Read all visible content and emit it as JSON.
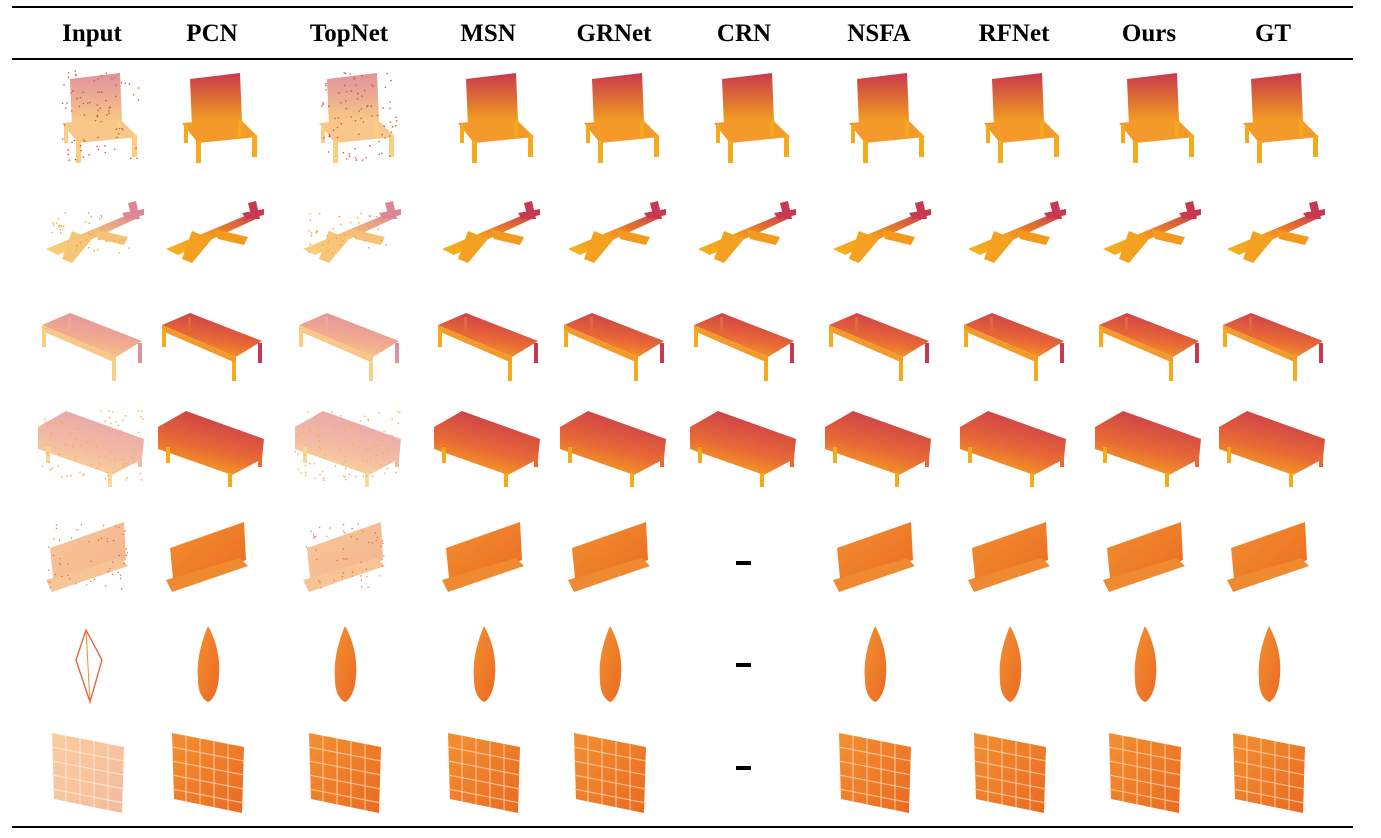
{
  "columns": [
    "Input",
    "PCN",
    "TopNet",
    "MSN",
    "GRNet",
    "CRN",
    "NSFA",
    "RFNet",
    "Ours",
    "GT"
  ],
  "rows": [
    {
      "object": "chair",
      "cells": [
        "point-cloud",
        "point-cloud",
        "point-cloud",
        "point-cloud",
        "point-cloud",
        "point-cloud",
        "point-cloud",
        "point-cloud",
        "point-cloud",
        "point-cloud"
      ]
    },
    {
      "object": "airplane",
      "cells": [
        "point-cloud",
        "point-cloud",
        "point-cloud",
        "point-cloud",
        "point-cloud",
        "point-cloud",
        "point-cloud",
        "point-cloud",
        "point-cloud",
        "point-cloud"
      ]
    },
    {
      "object": "table",
      "cells": [
        "point-cloud",
        "point-cloud",
        "point-cloud",
        "point-cloud",
        "point-cloud",
        "point-cloud",
        "point-cloud",
        "point-cloud",
        "point-cloud",
        "point-cloud"
      ]
    },
    {
      "object": "sofa",
      "cells": [
        "point-cloud",
        "point-cloud",
        "point-cloud",
        "point-cloud",
        "point-cloud",
        "point-cloud",
        "point-cloud",
        "point-cloud",
        "point-cloud",
        "point-cloud"
      ]
    },
    {
      "object": "bench",
      "cells": [
        "point-cloud",
        "point-cloud",
        "point-cloud",
        "point-cloud",
        "point-cloud",
        "-",
        "point-cloud",
        "point-cloud",
        "point-cloud",
        "point-cloud"
      ]
    },
    {
      "object": "vase",
      "cells": [
        "point-cloud",
        "point-cloud",
        "point-cloud",
        "point-cloud",
        "point-cloud",
        "-",
        "point-cloud",
        "point-cloud",
        "point-cloud",
        "point-cloud"
      ]
    },
    {
      "object": "shelf",
      "cells": [
        "point-cloud",
        "point-cloud",
        "point-cloud",
        "point-cloud",
        "point-cloud",
        "-",
        "point-cloud",
        "point-cloud",
        "point-cloud",
        "point-cloud"
      ]
    }
  ],
  "colors": {
    "rule": "#000000",
    "top": "#c8384e",
    "bottom": "#f7a91c",
    "orange": "#f07a22"
  }
}
